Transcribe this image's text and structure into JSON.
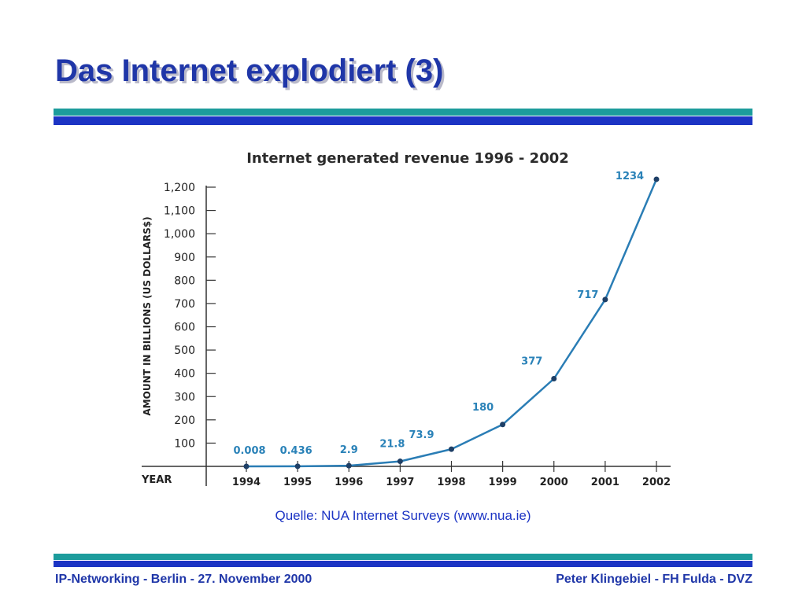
{
  "slide": {
    "title": "Das Internet explodiert (3)",
    "source": "Quelle: NUA Internet Surveys (www.nua.ie)",
    "footer_left": "IP-Networking - Berlin - 27. November 2000",
    "footer_right": "Peter Klingebiel - FH Fulda - DVZ"
  },
  "colors": {
    "title": "#1f36a8",
    "band_teal": "#1c9c9c",
    "band_blue": "#1c34c4",
    "series_line": "#2a7db5",
    "data_label": "#2a82b8"
  },
  "chart_data": {
    "type": "line",
    "title": "Internet generated revenue 1996 - 2002",
    "xlabel": "YEAR",
    "ylabel": "AMOUNT IN BILLIONS  (US DOLLARS$)",
    "categories": [
      "1994",
      "1995",
      "1996",
      "1997",
      "1998",
      "1999",
      "2000",
      "2001",
      "2002"
    ],
    "series": [
      {
        "values": [
          0.008,
          0.436,
          2.9,
          21.8,
          73.9,
          180,
          377,
          717,
          1234
        ],
        "labels": [
          "0.008",
          "0.436",
          "2.9",
          "21.8",
          "73.9",
          "180",
          "377",
          "717",
          "1234"
        ]
      }
    ],
    "ylim": [
      0,
      1200
    ],
    "yticks": [
      100,
      200,
      300,
      400,
      500,
      600,
      700,
      800,
      900,
      1000,
      1100,
      1200
    ],
    "ytick_labels": [
      "100",
      "200",
      "300",
      "400",
      "500",
      "600",
      "700",
      "800",
      "900",
      "1,000",
      "1,100",
      "1,200"
    ],
    "grid": false
  }
}
